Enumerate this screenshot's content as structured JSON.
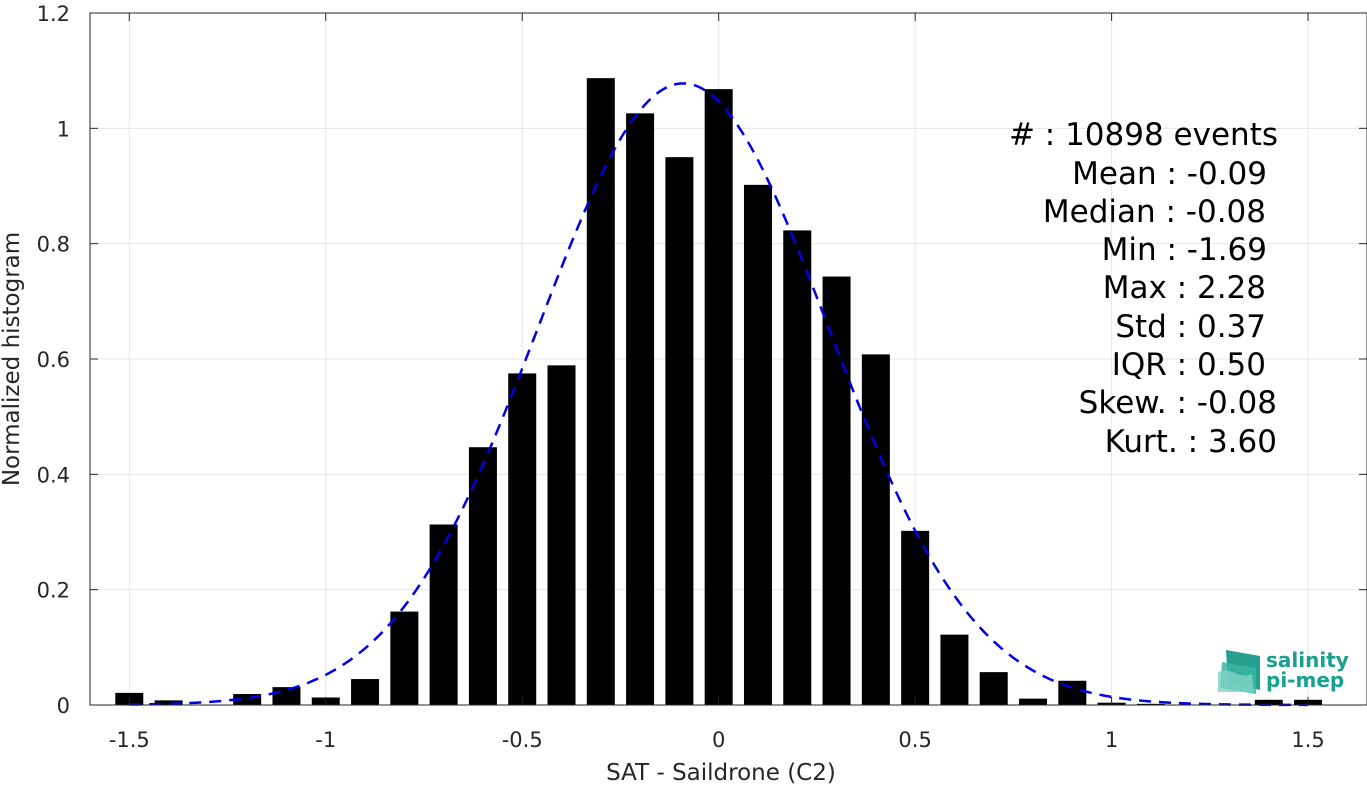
{
  "chart_data": {
    "type": "bar",
    "xlabel": "SAT - Saildrone (C2)",
    "ylabel": "Normalized histogram",
    "xlim": [
      -1.6,
      1.65
    ],
    "ylim": [
      0,
      1.2
    ],
    "grid": true,
    "xticks": [
      -1.5,
      -1,
      -0.5,
      0,
      0.5,
      1,
      1.5
    ],
    "xtick_labels": [
      "-1.5",
      "-1",
      "-0.5",
      "0",
      "0.5",
      "1",
      "1.5"
    ],
    "yticks": [
      0,
      0.2,
      0.4,
      0.6,
      0.8,
      1,
      1.2
    ],
    "ytick_labels": [
      "0",
      "0.2",
      "0.4",
      "0.6",
      "0.8",
      "1",
      "1.2"
    ],
    "bar_color": "#000000",
    "bins": [
      {
        "x": -1.5,
        "value": 0.021
      },
      {
        "x": -1.4,
        "value": 0.008
      },
      {
        "x": -1.2,
        "value": 0.019
      },
      {
        "x": -1.1,
        "value": 0.031
      },
      {
        "x": -1.0,
        "value": 0.013
      },
      {
        "x": -0.9,
        "value": 0.045
      },
      {
        "x": -0.8,
        "value": 0.162
      },
      {
        "x": -0.7,
        "value": 0.313
      },
      {
        "x": -0.6,
        "value": 0.447
      },
      {
        "x": -0.5,
        "value": 0.575
      },
      {
        "x": -0.4,
        "value": 0.589
      },
      {
        "x": -0.3,
        "value": 1.087
      },
      {
        "x": -0.2,
        "value": 1.026
      },
      {
        "x": -0.1,
        "value": 0.95
      },
      {
        "x": 0.0,
        "value": 1.068
      },
      {
        "x": 0.1,
        "value": 0.902
      },
      {
        "x": 0.2,
        "value": 0.823
      },
      {
        "x": 0.3,
        "value": 0.743
      },
      {
        "x": 0.4,
        "value": 0.608
      },
      {
        "x": 0.5,
        "value": 0.302
      },
      {
        "x": 0.6,
        "value": 0.122
      },
      {
        "x": 0.7,
        "value": 0.057
      },
      {
        "x": 0.8,
        "value": 0.011
      },
      {
        "x": 0.9,
        "value": 0.042
      },
      {
        "x": 1.0,
        "value": 0.004
      },
      {
        "x": 1.1,
        "value": 0.002
      },
      {
        "x": 1.4,
        "value": 0.009
      },
      {
        "x": 1.5,
        "value": 0.009
      }
    ],
    "fit_curve": {
      "style": "dashed",
      "color": "#0000e6",
      "mean": -0.09,
      "std": 0.37,
      "peak": 1.078,
      "x_range": [
        -1.5,
        1.5
      ]
    },
    "annotations": {
      "count": "#  : 10898 events",
      "mean": "Mean : -0.09",
      "median": "Median : -0.08",
      "min": "Min : -1.69",
      "max": "Max : 2.28",
      "std": "Std : 0.37",
      "iqr": "IQR : 0.50",
      "skew": "Skew. : -0.08",
      "kurt": "Kurt. : 3.60"
    }
  },
  "logo": {
    "line1": "salinity",
    "line2": "pi-mep",
    "color": "#19a08e"
  }
}
